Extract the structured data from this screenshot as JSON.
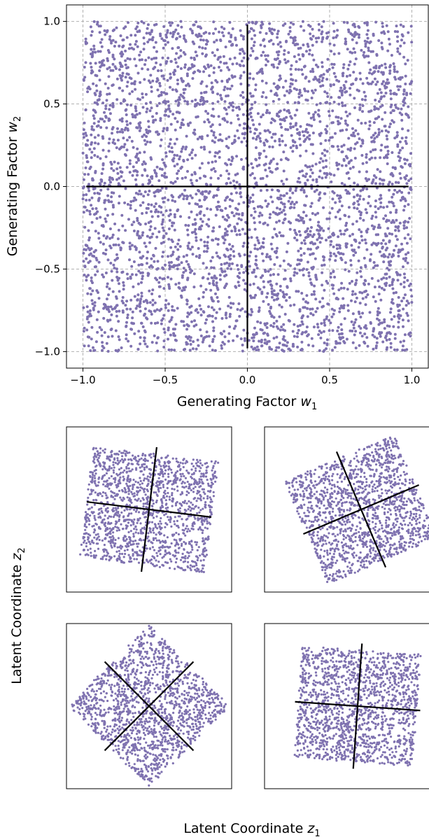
{
  "colors": {
    "points": "#7f72b0",
    "axes": "#000000",
    "grid": "#b0b0b0"
  },
  "chart_data": [
    {
      "type": "scatter",
      "title": "",
      "xlabel": "Generating Factor",
      "xlabel_var": "w",
      "xlabel_sub": "1",
      "ylabel": "Generating Factor",
      "ylabel_var": "w",
      "ylabel_sub": "2",
      "xlim": [
        -1.1,
        1.1
      ],
      "ylim": [
        -1.1,
        1.1
      ],
      "xticks": [
        -1.0,
        -0.5,
        0.0,
        0.5,
        1.0
      ],
      "xtick_labels": [
        "−1.0",
        "−0.5",
        "0.0",
        "0.5",
        "1.0"
      ],
      "yticks": [
        -1.0,
        -0.5,
        0.0,
        0.5,
        1.0
      ],
      "ytick_labels": [
        "−1.0",
        "−0.5",
        "0.0",
        "0.5",
        "1.0"
      ],
      "grid": true,
      "distribution": {
        "kind": "uniform-square",
        "x_range": [
          -1,
          1
        ],
        "y_range": [
          -1,
          1
        ],
        "approx_points": 4000
      },
      "cross_lines": [
        {
          "x": [
            -0.98,
            0.98
          ],
          "y": [
            0.0,
            0.0
          ]
        },
        {
          "x": [
            0.0,
            0.0
          ],
          "y": [
            -0.98,
            0.98
          ]
        }
      ]
    },
    {
      "type": "scatter",
      "panels_label_x": "Latent Coordinate",
      "panels_label_x_var": "z",
      "panels_label_x_sub": "1",
      "panels_label_y": "Latent Coordinate",
      "panels_label_y_var": "z",
      "panels_label_y_sub": "2",
      "panels": [
        {
          "name": "top-left",
          "rotation_deg": -7,
          "points": 1500,
          "rectangle": [
            0.9,
            0.8
          ]
        },
        {
          "name": "top-right",
          "rotation_deg": 23,
          "points": 1500,
          "rectangle": [
            0.85,
            0.8
          ]
        },
        {
          "name": "bottom-left",
          "rotation_deg": 45,
          "points": 1500,
          "rectangle": [
            0.82,
            0.82
          ]
        },
        {
          "name": "bottom-right",
          "rotation_deg": -4,
          "points": 1500,
          "rectangle": [
            0.85,
            0.8
          ]
        }
      ]
    }
  ]
}
